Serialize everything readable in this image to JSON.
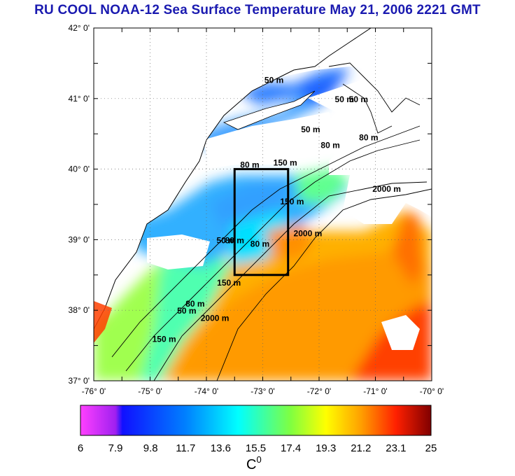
{
  "title": "RU COOL  NOAA-12 Sea Surface Temperature May 21, 2006 2221 GMT",
  "map": {
    "lat_labels": [
      "42° 0'",
      "41° 0'",
      "40° 0'",
      "39° 0'",
      "38° 0'",
      "37° 0'"
    ],
    "lon_labels": [
      "-76° 0'",
      "-75° 0'",
      "-74° 0'",
      "-73° 0'",
      "-72° 0'",
      "-71° 0'",
      "-70° 0'"
    ],
    "lat_range": [
      37,
      42
    ],
    "lon_range": [
      -76,
      -70
    ],
    "contour_labels": [
      {
        "text": "50 m",
        "lon": -72.8,
        "lat": 41.22
      },
      {
        "text": "50 m",
        "lon": -71.3,
        "lat": 40.95
      },
      {
        "text": "50 m",
        "lon": -71.55,
        "lat": 40.95
      },
      {
        "text": "50 m",
        "lon": -72.15,
        "lat": 40.52
      },
      {
        "text": "80 m",
        "lon": -71.8,
        "lat": 40.3
      },
      {
        "text": "80 m",
        "lon": -71.12,
        "lat": 40.41
      },
      {
        "text": "150 m",
        "lon": -72.6,
        "lat": 40.05
      },
      {
        "text": "80 m",
        "lon": -73.23,
        "lat": 40.02
      },
      {
        "text": "2000 m",
        "lon": -70.8,
        "lat": 39.68
      },
      {
        "text": "150 m",
        "lon": -72.48,
        "lat": 39.5
      },
      {
        "text": "2000 m",
        "lon": -72.2,
        "lat": 39.05
      },
      {
        "text": "50 m",
        "lon": -73.65,
        "lat": 38.95
      },
      {
        "text": "80 m",
        "lon": -73.5,
        "lat": 38.95
      },
      {
        "text": "80 m",
        "lon": -73.05,
        "lat": 38.9
      },
      {
        "text": "150 m",
        "lon": -73.6,
        "lat": 38.35
      },
      {
        "text": "50 m",
        "lon": -74.35,
        "lat": 37.95
      },
      {
        "text": "80 m",
        "lon": -74.2,
        "lat": 38.05
      },
      {
        "text": "2000 m",
        "lon": -73.85,
        "lat": 37.85
      },
      {
        "text": "150 m",
        "lon": -74.75,
        "lat": 37.55
      }
    ],
    "study_box": {
      "lon_min": -73.5,
      "lon_max": -72.55,
      "lat_min": 38.5,
      "lat_max": 40.0
    }
  },
  "colorbar": {
    "tick_labels": [
      "6",
      "7.9",
      "9.8",
      "11.7",
      "13.6",
      "15.5",
      "17.4",
      "19.3",
      "21.2",
      "23.1",
      "25"
    ],
    "unit": "C",
    "unit_superscript": "0",
    "min": 6,
    "max": 25
  },
  "colors": {
    "title": "#1a1ab0",
    "frame": "#000000",
    "land": "#ffffff"
  }
}
